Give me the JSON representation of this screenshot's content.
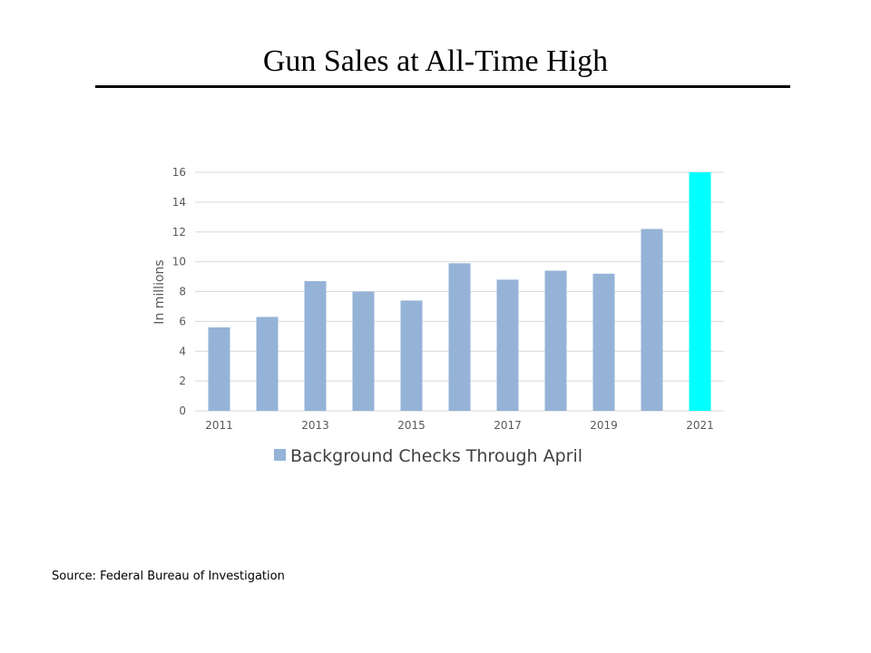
{
  "slide": {
    "title": "Gun Sales at All-Time High",
    "source": "Source: Federal Bureau of Investigation"
  },
  "colors": {
    "bar": "#95b3d7",
    "highlight_bar": "#00ffff",
    "grid": "#d9d9d9",
    "text": "#595959"
  },
  "chart_data": {
    "type": "bar",
    "title": "",
    "xlabel": "",
    "ylabel": "In millions",
    "categories": [
      "2011",
      "2012",
      "2013",
      "2014",
      "2015",
      "2016",
      "2017",
      "2018",
      "2019",
      "2020",
      "2021"
    ],
    "tick_labels_shown": [
      "2011",
      "2013",
      "2015",
      "2017",
      "2019",
      "2021"
    ],
    "series": [
      {
        "name": "Background Checks Through April",
        "values": [
          5.6,
          6.3,
          8.7,
          8.0,
          7.4,
          9.9,
          8.8,
          9.4,
          9.2,
          12.2,
          16.0
        ]
      }
    ],
    "highlight_category": "2021",
    "ylim": [
      0,
      16
    ],
    "yticks": [
      0,
      2,
      4,
      6,
      8,
      10,
      12,
      14,
      16
    ],
    "grid": true,
    "legend_position": "bottom"
  }
}
